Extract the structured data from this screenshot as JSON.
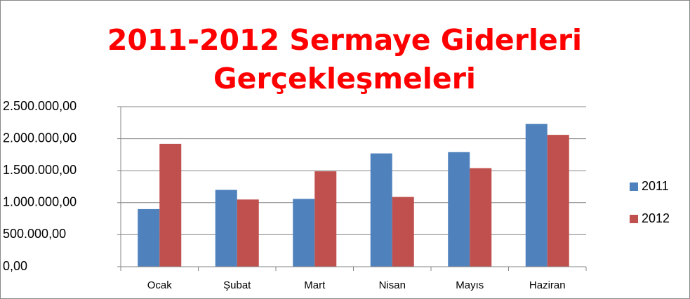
{
  "chart_data": {
    "type": "bar",
    "title": "2011-2012 Sermaye Giderleri Gerçekleşmeleri",
    "categories": [
      "Ocak",
      "Şubat",
      "Mart",
      "Nisan",
      "Mayıs",
      "Haziran"
    ],
    "series": [
      {
        "name": "2011",
        "color": "#4f81bd",
        "values": [
          900000,
          1200000,
          1060000,
          1770000,
          1790000,
          2230000
        ]
      },
      {
        "name": "2012",
        "color": "#c0504d",
        "values": [
          1920000,
          1050000,
          1490000,
          1090000,
          1540000,
          2060000
        ]
      }
    ],
    "ylim": [
      0,
      2500000
    ],
    "yticks": [
      {
        "value": 0,
        "label": "0,00"
      },
      {
        "value": 500000,
        "label": "500.000,00"
      },
      {
        "value": 1000000,
        "label": "1.000.000,00"
      },
      {
        "value": 1500000,
        "label": "1.500.000,00"
      },
      {
        "value": 2000000,
        "label": "2.000.000,00"
      },
      {
        "value": 2500000,
        "label": "2.500.000,00"
      }
    ],
    "grid": true,
    "legend": "right"
  }
}
